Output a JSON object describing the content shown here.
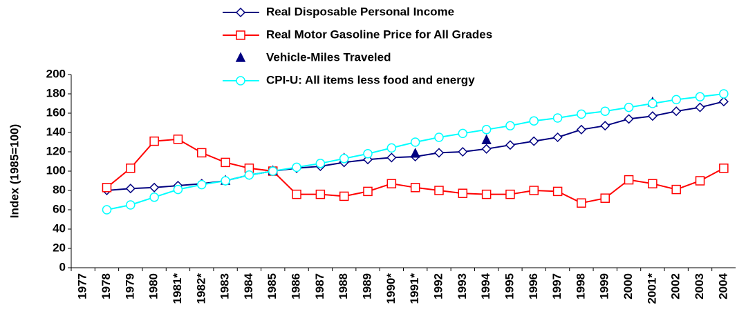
{
  "chart_data": {
    "type": "line",
    "y_label": "Index (1985=100)",
    "categories": [
      "1977",
      "1978",
      "1979",
      "1980",
      "1981*",
      "1982*",
      "1983",
      "1984",
      "1985",
      "1986",
      "1987",
      "1988",
      "1989",
      "1990*",
      "1991*",
      "1992",
      "1993",
      "1994",
      "1995",
      "1996",
      "1997",
      "1998",
      "1999",
      "2000",
      "2001*",
      "2002",
      "2003",
      "2004"
    ],
    "series": [
      {
        "name": "Real Disposable Personal Income",
        "color": "#000080",
        "marker": "diamond",
        "line": true,
        "values": [
          null,
          80,
          82,
          83,
          85,
          87,
          90,
          96,
          100,
          103,
          105,
          109,
          112,
          114,
          115,
          119,
          120,
          123,
          127,
          131,
          135,
          143,
          147,
          154,
          157,
          162,
          166,
          172
        ]
      },
      {
        "name": "Real Motor Gasoline Price for All Grades",
        "color": "#ff0000",
        "marker": "square",
        "line": true,
        "values": [
          null,
          83,
          103,
          131,
          133,
          119,
          109,
          103,
          100,
          76,
          76,
          74,
          79,
          87,
          83,
          80,
          77,
          76,
          76,
          80,
          79,
          67,
          72,
          91,
          87,
          81,
          90,
          103
        ]
      },
      {
        "name": "Vehicle-Miles Traveled",
        "color": "#000080",
        "marker": "triangle",
        "line": false,
        "values": [
          null,
          null,
          null,
          null,
          null,
          null,
          90,
          null,
          100,
          null,
          null,
          113,
          null,
          null,
          118,
          null,
          null,
          132,
          null,
          null,
          null,
          null,
          null,
          null,
          171,
          null,
          null,
          null
        ]
      },
      {
        "name": "CPI-U: All items less food and energy",
        "color": "#00ffff",
        "marker": "circle",
        "line": true,
        "values": [
          null,
          60,
          65,
          73,
          81,
          86,
          90,
          96,
          100,
          104,
          108,
          113,
          118,
          124,
          130,
          135,
          139,
          143,
          147,
          152,
          155,
          159,
          162,
          166,
          170,
          174,
          177,
          180
        ]
      }
    ],
    "ylim": [
      0,
      200
    ],
    "yticks": [
      0,
      20,
      40,
      60,
      80,
      100,
      120,
      140,
      160,
      180,
      200
    ],
    "grid": false
  }
}
